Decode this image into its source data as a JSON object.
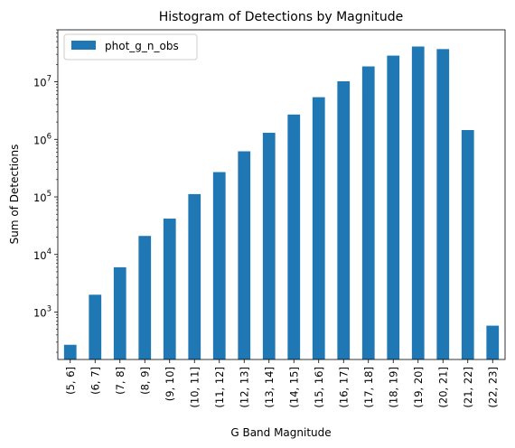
{
  "chart_data": {
    "type": "bar",
    "title": "Histogram of Detections by Magnitude",
    "xlabel": "G Band Magnitude",
    "ylabel": "Sum of Detections",
    "yscale": "log",
    "ylim": [
      150,
      80000000
    ],
    "ytick_values": [
      1000,
      10000,
      100000,
      1000000,
      10000000
    ],
    "ytick_labels": [
      {
        "base": "10",
        "exp": "3"
      },
      {
        "base": "10",
        "exp": "4"
      },
      {
        "base": "10",
        "exp": "5"
      },
      {
        "base": "10",
        "exp": "6"
      },
      {
        "base": "10",
        "exp": "7"
      }
    ],
    "categories": [
      "(5, 6]",
      "(6, 7]",
      "(7, 8]",
      "(8, 9]",
      "(9, 10]",
      "(10, 11]",
      "(11, 12]",
      "(12, 13]",
      "(13, 14]",
      "(14, 15]",
      "(15, 16]",
      "(16, 17]",
      "(17, 18]",
      "(18, 19]",
      "(19, 20]",
      "(20, 21]",
      "(21, 22]",
      "(22, 23]"
    ],
    "series": [
      {
        "name": "phot_g_n_obs",
        "color": "#1f77b4",
        "values": [
          270,
          2000,
          6000,
          21000,
          42000,
          112000,
          270000,
          620000,
          1300000,
          2700000,
          5400000,
          10200000,
          18500000,
          28500000,
          41000000,
          37000000,
          1450000,
          580
        ]
      }
    ],
    "legend_position": "top-left",
    "grid": false
  }
}
